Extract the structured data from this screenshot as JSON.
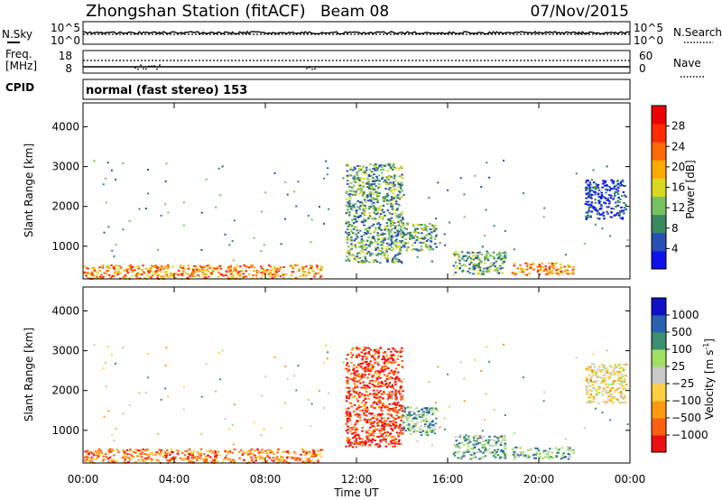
{
  "header": {
    "station": "Zhongshan Station (fitACF)",
    "beam": "Beam 08",
    "date": "07/Nov/2015"
  },
  "top_panel": {
    "left_label": "N.Sky",
    "left_ticks": [
      "10^5",
      "10^0"
    ],
    "right_ticks": [
      "10^5",
      "10^0"
    ],
    "right_label": "N.Search"
  },
  "freq_panel": {
    "left_label_1": "Freq.",
    "left_label_2": "[MHz]",
    "left_ticks": [
      "18",
      "8"
    ],
    "right_ticks": [
      "60",
      "0"
    ],
    "right_label": "Nave"
  },
  "cpid": {
    "label": "CPID",
    "mode": "normal (fast stereo) 153"
  },
  "colors": {
    "power_scale": [
      "#1010ee",
      "#2850b4",
      "#3a8a60",
      "#78c060",
      "#d8d820",
      "#ffaa00",
      "#ff6a00",
      "#ff2a00",
      "#ee0000"
    ],
    "velocity_scale": [
      "#ee1010",
      "#ff6010",
      "#ff9a10",
      "#ffd040",
      "#c8c8c8",
      "#a0e060",
      "#3c9070",
      "#2a60b0",
      "#1010c8"
    ]
  },
  "chart_data": [
    {
      "type": "heatmap",
      "panel": "power",
      "ylabel": "Slant Range [km]",
      "ylim": [
        180,
        4600
      ],
      "yticks": [
        "1000",
        "2000",
        "3000",
        "4000"
      ],
      "xlim": [
        0,
        24
      ],
      "colorbar_label": "Power [dB]",
      "colorbar_ticks": [
        "4",
        "8",
        "12",
        "16",
        "20",
        "24",
        "28"
      ],
      "features": [
        {
          "t0": 0.0,
          "t1": 10.5,
          "r0": 200,
          "r1": 550,
          "level": "high"
        },
        {
          "t0": 11.5,
          "t1": 14.0,
          "r0": 600,
          "r1": 3100,
          "level": "mid"
        },
        {
          "t0": 14.0,
          "t1": 15.5,
          "r0": 900,
          "r1": 1600,
          "level": "mid"
        },
        {
          "t0": 16.2,
          "t1": 18.5,
          "r0": 300,
          "r1": 900,
          "level": "mid"
        },
        {
          "t0": 18.8,
          "t1": 21.5,
          "r0": 300,
          "r1": 600,
          "level": "high"
        },
        {
          "t0": 22.0,
          "t1": 23.8,
          "r0": 1700,
          "r1": 2700,
          "level": "low"
        }
      ]
    },
    {
      "type": "heatmap",
      "panel": "velocity",
      "ylabel": "Slant Range [km]",
      "ylim": [
        180,
        4600
      ],
      "yticks": [
        "1000",
        "2000",
        "3000",
        "4000"
      ],
      "xlabel": "Time UT",
      "xlim": [
        0,
        24
      ],
      "xticks": [
        "00:00",
        "04:00",
        "08:00",
        "12:00",
        "16:00",
        "20:00",
        "00:00"
      ],
      "colorbar_label": "Velocity [m s",
      "colorbar_label_sup": "-1",
      "colorbar_label_end": "]",
      "colorbar_ticks": [
        "1000",
        "500",
        "100",
        "25",
        "−25",
        "−100",
        "−500",
        "−1000"
      ]
    }
  ]
}
